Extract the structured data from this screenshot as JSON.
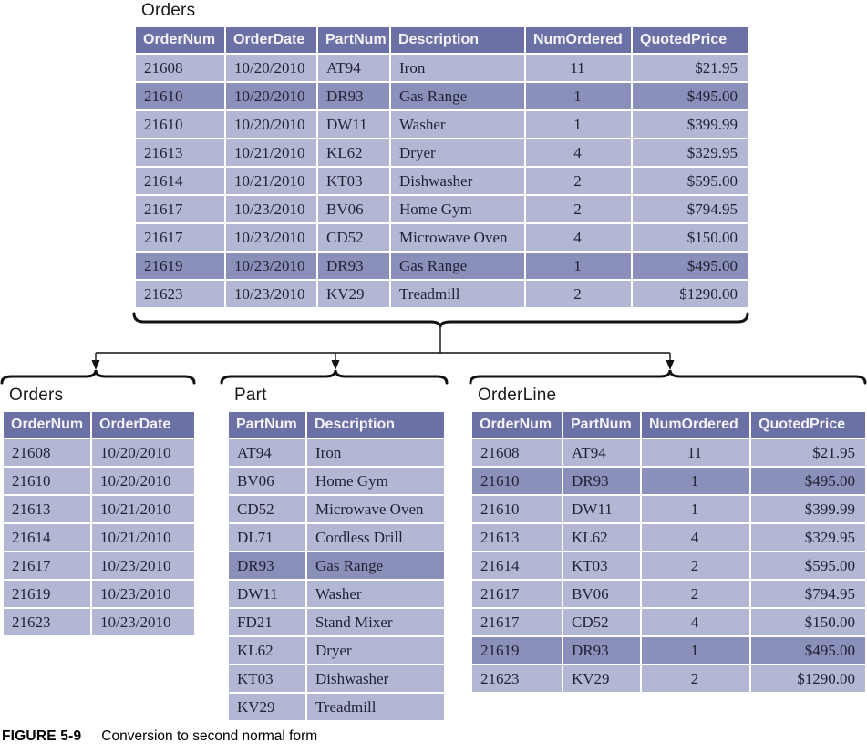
{
  "figure": {
    "label": "FIGURE 5-9",
    "caption": "Conversion to second normal form"
  },
  "colors": {
    "header_bg": "#6b71a4",
    "header_text": "#f3f2f8",
    "row_light": "#b4b7d3",
    "row_dark": "#8b90bb",
    "cell_text": "#1f2133",
    "line_color": "#111111"
  },
  "tables": {
    "orders_main": {
      "title": "Orders",
      "columns": [
        "OrderNum",
        "OrderDate",
        "PartNum",
        "Description",
        "NumOrdered",
        "QuotedPrice"
      ],
      "align": [
        "left",
        "left",
        "left",
        "left",
        "center",
        "right"
      ],
      "rows": [
        [
          "21608",
          "10/20/2010",
          "AT94",
          "Iron",
          "11",
          "$21.95"
        ],
        [
          "21610",
          "10/20/2010",
          "DR93",
          "Gas Range",
          "1",
          "$495.00"
        ],
        [
          "21610",
          "10/20/2010",
          "DW11",
          "Washer",
          "1",
          "$399.99"
        ],
        [
          "21613",
          "10/21/2010",
          "KL62",
          "Dryer",
          "4",
          "$329.95"
        ],
        [
          "21614",
          "10/21/2010",
          "KT03",
          "Dishwasher",
          "2",
          "$595.00"
        ],
        [
          "21617",
          "10/23/2010",
          "BV06",
          "Home Gym",
          "2",
          "$794.95"
        ],
        [
          "21617",
          "10/23/2010",
          "CD52",
          "Microwave Oven",
          "4",
          "$150.00"
        ],
        [
          "21619",
          "10/23/2010",
          "DR93",
          "Gas Range",
          "1",
          "$495.00"
        ],
        [
          "21623",
          "10/23/2010",
          "KV29",
          "Treadmill",
          "2",
          "$1290.00"
        ]
      ],
      "highlighted_rows": [
        1,
        7
      ]
    },
    "orders_2nf": {
      "title": "Orders",
      "columns": [
        "OrderNum",
        "OrderDate"
      ],
      "align": [
        "left",
        "left"
      ],
      "rows": [
        [
          "21608",
          "10/20/2010"
        ],
        [
          "21610",
          "10/20/2010"
        ],
        [
          "21613",
          "10/21/2010"
        ],
        [
          "21614",
          "10/21/2010"
        ],
        [
          "21617",
          "10/23/2010"
        ],
        [
          "21619",
          "10/23/2010"
        ],
        [
          "21623",
          "10/23/2010"
        ]
      ],
      "highlighted_rows": []
    },
    "part": {
      "title": "Part",
      "columns": [
        "PartNum",
        "Description"
      ],
      "align": [
        "left",
        "left"
      ],
      "rows": [
        [
          "AT94",
          "Iron"
        ],
        [
          "BV06",
          "Home Gym"
        ],
        [
          "CD52",
          "Microwave Oven"
        ],
        [
          "DL71",
          "Cordless Drill"
        ],
        [
          "DR93",
          "Gas Range"
        ],
        [
          "DW11",
          "Washer"
        ],
        [
          "FD21",
          "Stand Mixer"
        ],
        [
          "KL62",
          "Dryer"
        ],
        [
          "KT03",
          "Dishwasher"
        ],
        [
          "KV29",
          "Treadmill"
        ]
      ],
      "highlighted_rows": [
        4
      ]
    },
    "order_line": {
      "title": "OrderLine",
      "columns": [
        "OrderNum",
        "PartNum",
        "NumOrdered",
        "QuotedPrice"
      ],
      "align": [
        "left",
        "left",
        "center",
        "right"
      ],
      "rows": [
        [
          "21608",
          "AT94",
          "11",
          "$21.95"
        ],
        [
          "21610",
          "DR93",
          "1",
          "$495.00"
        ],
        [
          "21610",
          "DW11",
          "1",
          "$399.99"
        ],
        [
          "21613",
          "KL62",
          "4",
          "$329.95"
        ],
        [
          "21614",
          "KT03",
          "2",
          "$595.00"
        ],
        [
          "21617",
          "BV06",
          "2",
          "$794.95"
        ],
        [
          "21617",
          "CD52",
          "4",
          "$150.00"
        ],
        [
          "21619",
          "DR93",
          "1",
          "$495.00"
        ],
        [
          "21623",
          "KV29",
          "2",
          "$1290.00"
        ]
      ],
      "highlighted_rows": [
        1,
        7
      ]
    }
  }
}
